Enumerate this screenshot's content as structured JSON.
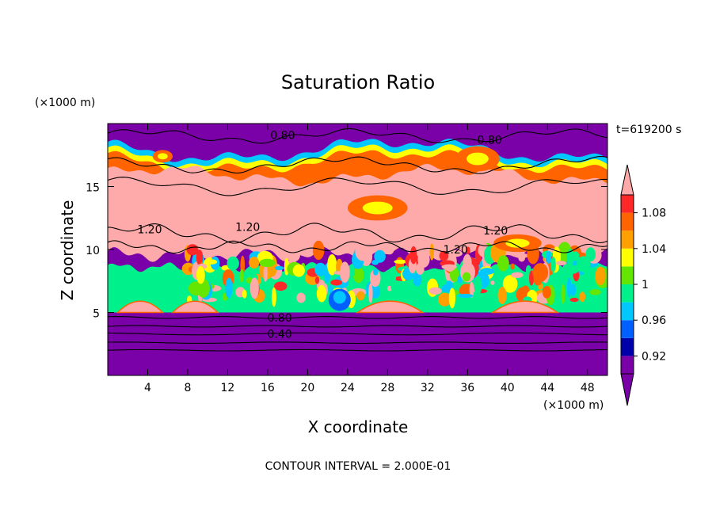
{
  "chart_data": {
    "type": "heatmap",
    "title": "Saturation Ratio",
    "xlabel": "X coordinate",
    "ylabel": "Z coordinate",
    "x_unit_label": "(×1000 m)",
    "y_unit_label": "(×1000 m)",
    "time_label": "t=619200 s",
    "footer": "CONTOUR INTERVAL = 2.000E-01",
    "xlim": [
      0,
      50
    ],
    "ylim": [
      0,
      20
    ],
    "x_ticks": [
      4,
      8,
      12,
      16,
      20,
      24,
      28,
      32,
      36,
      40,
      44,
      48
    ],
    "y_ticks": [
      5,
      10,
      15
    ],
    "colorbar": {
      "levels": [
        0.9,
        0.92,
        0.94,
        0.96,
        0.98,
        1.0,
        1.02,
        1.04,
        1.06,
        1.08,
        1.1
      ],
      "tick_labels": [
        {
          "value": 0.92,
          "text": "0.92"
        },
        {
          "value": 0.96,
          "text": "0.96"
        },
        {
          "value": 1.0,
          "text": "1"
        },
        {
          "value": 1.04,
          "text": "1.04"
        },
        {
          "value": 1.08,
          "text": "1.08"
        }
      ],
      "colors": [
        "#7a00a8",
        "#0000aa",
        "#0060ff",
        "#00c8ff",
        "#00f08c",
        "#64e600",
        "#ffff00",
        "#ffa000",
        "#ff6400",
        "#ff2828",
        "#ffaaaa"
      ],
      "extend": "both"
    },
    "contour_labels": [
      {
        "text": "0.80",
        "x": 17.5,
        "z": 19.1
      },
      {
        "text": "0.80",
        "x": 38.2,
        "z": 18.7
      },
      {
        "text": "1.20",
        "x": 4.2,
        "z": 11.6
      },
      {
        "text": "1.20",
        "x": 14.0,
        "z": 11.8
      },
      {
        "text": "1.20",
        "x": 34.8,
        "z": 10.0
      },
      {
        "text": "1.20",
        "x": 38.8,
        "z": 11.5
      },
      {
        "text": "0.80",
        "x": 17.2,
        "z": 4.6
      },
      {
        "text": "0.40",
        "x": 17.2,
        "z": 3.3
      }
    ],
    "regions": [
      {
        "range": "< 0.90",
        "z_from": 0,
        "z_to": 4.8,
        "note": "stratified low layer"
      },
      {
        "range": "0.98 - 1.02",
        "z_from": 5.0,
        "z_to": 8.5,
        "note": "mixed green/cyan cloud layer"
      },
      {
        "range": "1.00 - 1.10",
        "z_from": 8.5,
        "z_to": 10.0,
        "note": "patchy transition"
      },
      {
        "range": "> 1.10",
        "z_from": 10.0,
        "z_to": 15.8,
        "note": "supersaturated layer"
      },
      {
        "range": "0.94 - 1.10",
        "z_from": 15.8,
        "z_to": 18.0,
        "note": "multicolour band at top of supersaturated layer"
      },
      {
        "range": "< 0.90",
        "z_from": 18.0,
        "z_to": 20,
        "note": "upper dry layer"
      }
    ]
  }
}
